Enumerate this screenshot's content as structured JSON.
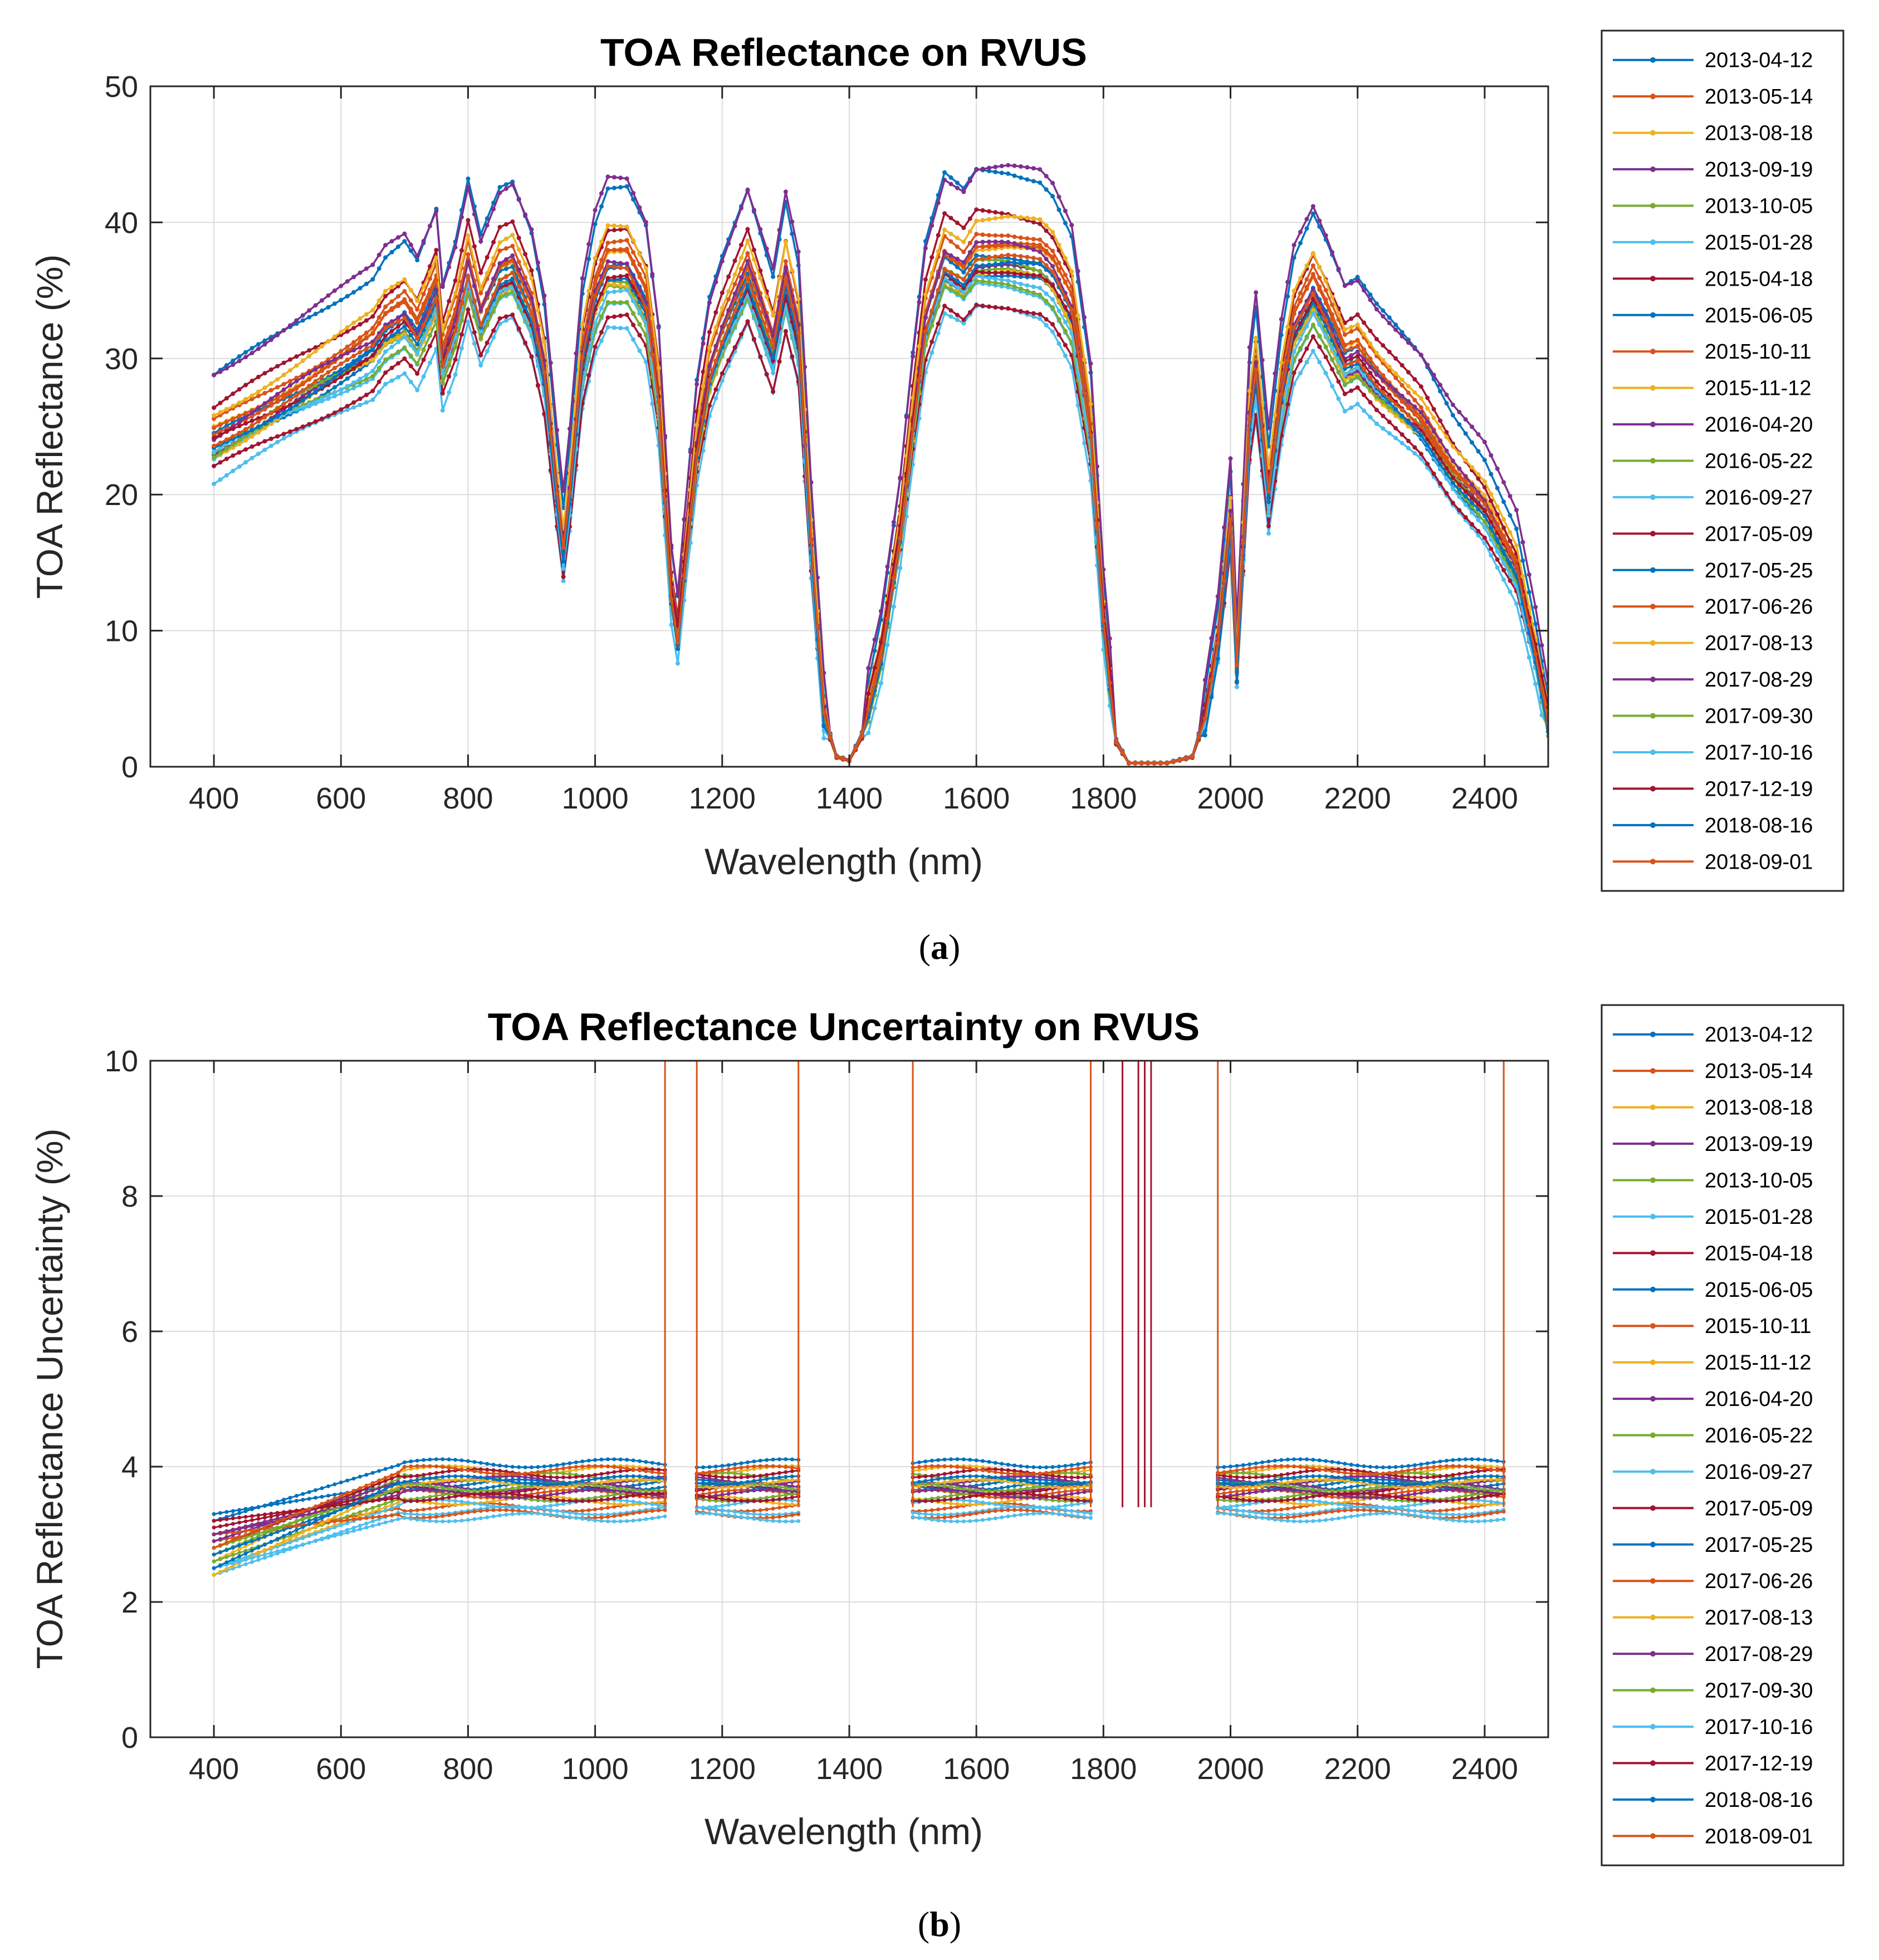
{
  "chart_data": [
    {
      "type": "line",
      "title": "TOA Reflectance on RVUS",
      "xlabel": "Wavelength (nm)",
      "ylabel": "TOA Reflectance (%)",
      "xlim": [
        300,
        2500
      ],
      "ylim": [
        0,
        50
      ],
      "xticks": [
        400,
        600,
        800,
        1000,
        1200,
        1400,
        1600,
        1800,
        2000,
        2200,
        2400
      ],
      "yticks": [
        0,
        10,
        20,
        30,
        40,
        50
      ],
      "grid": true,
      "legend_position": "outside-right",
      "caption": {
        "open": "(",
        "letter": "a",
        "close": ")"
      },
      "series": [
        {
          "name": "2013-04-12",
          "color": "#0072BD",
          "scale": 1.02,
          "offset": 1.5
        },
        {
          "name": "2013-05-14",
          "color": "#D95319",
          "scale": 0.95,
          "offset": 0.0
        },
        {
          "name": "2013-08-18",
          "color": "#EDB120",
          "scale": 0.9,
          "offset": 1.0
        },
        {
          "name": "2013-09-19",
          "color": "#7E2F8E",
          "scale": 1.0,
          "offset": 2.5
        },
        {
          "name": "2013-10-05",
          "color": "#77AC30",
          "scale": 0.86,
          "offset": 0.5
        },
        {
          "name": "2015-01-28",
          "color": "#4DBEEE",
          "scale": 0.83,
          "offset": -1.0
        },
        {
          "name": "2015-04-18",
          "color": "#A2142F",
          "scale": 0.97,
          "offset": 0.5
        },
        {
          "name": "2015-06-05",
          "color": "#0072BD",
          "scale": 0.91,
          "offset": 0.0
        },
        {
          "name": "2015-10-11",
          "color": "#D95319",
          "scale": 0.93,
          "offset": 0.0
        },
        {
          "name": "2015-11-12",
          "color": "#EDB120",
          "scale": 0.96,
          "offset": 0.5
        },
        {
          "name": "2016-04-20",
          "color": "#7E2F8E",
          "scale": 0.88,
          "offset": 0.0
        },
        {
          "name": "2016-05-22",
          "color": "#77AC30",
          "scale": 0.9,
          "offset": -0.5
        },
        {
          "name": "2016-09-27",
          "color": "#4DBEEE",
          "scale": 0.85,
          "offset": 0.0
        },
        {
          "name": "2017-05-09",
          "color": "#A2142F",
          "scale": 0.82,
          "offset": 0.0
        },
        {
          "name": "2017-05-25",
          "color": "#0072BD",
          "scale": 0.89,
          "offset": -0.5
        },
        {
          "name": "2017-06-26",
          "color": "#D95319",
          "scale": 0.94,
          "offset": -0.5
        },
        {
          "name": "2017-08-13",
          "color": "#EDB120",
          "scale": 0.87,
          "offset": 0.0
        },
        {
          "name": "2017-08-29",
          "color": "#7E2F8E",
          "scale": 0.92,
          "offset": 0.0
        },
        {
          "name": "2017-09-30",
          "color": "#77AC30",
          "scale": 0.84,
          "offset": 0.5
        },
        {
          "name": "2017-10-16",
          "color": "#4DBEEE",
          "scale": 0.88,
          "offset": -0.5
        },
        {
          "name": "2017-12-19",
          "color": "#A2142F",
          "scale": 0.86,
          "offset": 1.0
        },
        {
          "name": "2018-08-16",
          "color": "#0072BD",
          "scale": 0.92,
          "offset": -1.0
        },
        {
          "name": "2018-09-01",
          "color": "#D95319",
          "scale": 0.9,
          "offset": 0.0
        }
      ],
      "base_curve": {
        "x": [
          400,
          450,
          500,
          550,
          600,
          650,
          670,
          700,
          720,
          750,
          760,
          780,
          800,
          820,
          850,
          870,
          900,
          920,
          940,
          950,
          960,
          980,
          1000,
          1020,
          1050,
          1080,
          1100,
          1120,
          1130,
          1140,
          1160,
          1180,
          1200,
          1240,
          1260,
          1280,
          1300,
          1320,
          1340,
          1360,
          1380,
          1400,
          1420,
          1450,
          1480,
          1500,
          1520,
          1550,
          1580,
          1600,
          1650,
          1700,
          1720,
          1750,
          1780,
          1800,
          1820,
          1840,
          1900,
          1940,
          1960,
          1980,
          2000,
          2010,
          2030,
          2040,
          2060,
          2080,
          2100,
          2130,
          2150,
          2180,
          2200,
          2230,
          2260,
          2300,
          2350,
          2400,
          2450,
          2480,
          2500
        ],
        "y": [
          26.5,
          28.0,
          29.5,
          31.0,
          32.5,
          34.0,
          35.5,
          36.5,
          35.0,
          38.5,
          33.0,
          36.0,
          40.5,
          36.5,
          40.0,
          40.5,
          37.0,
          32.0,
          22.0,
          17.5,
          22.0,
          33.0,
          38.0,
          40.5,
          40.5,
          37.5,
          30.0,
          14.0,
          10.5,
          16.0,
          26.0,
          32.0,
          35.0,
          40.0,
          37.0,
          34.0,
          39.5,
          35.0,
          18.0,
          4.0,
          0.8,
          0.5,
          2.5,
          9.0,
          19.0,
          28.0,
          36.0,
          41.0,
          40.0,
          41.5,
          41.5,
          41.0,
          40.0,
          37.0,
          27.0,
          12.0,
          2.0,
          0.3,
          0.3,
          0.8,
          4.0,
          10.0,
          20.0,
          8.0,
          28.0,
          32.0,
          22.0,
          30.0,
          35.5,
          38.5,
          36.5,
          33.0,
          33.5,
          31.5,
          30.0,
          28.0,
          24.0,
          21.0,
          16.0,
          9.0,
          3.5
        ]
      }
    },
    {
      "type": "line",
      "title": "TOA Reflectance Uncertainty on RVUS",
      "xlabel": "Wavelength (nm)",
      "ylabel": "TOA Reflectance Uncertainty (%)",
      "xlim": [
        300,
        2500
      ],
      "ylim": [
        0,
        10
      ],
      "xticks": [
        400,
        600,
        800,
        1000,
        1200,
        1400,
        1600,
        1800,
        2000,
        2200,
        2400
      ],
      "yticks": [
        0,
        2,
        4,
        6,
        8,
        10
      ],
      "grid": true,
      "legend_position": "outside-right",
      "caption": {
        "open": "(",
        "letter": "b",
        "close": ")"
      },
      "segments": [
        [
          400,
          1110
        ],
        [
          1160,
          1320
        ],
        [
          1500,
          1780
        ],
        [
          1980,
          2430
        ]
      ],
      "spikes": [
        {
          "x": 1110,
          "color": "#D95319"
        },
        {
          "x": 1160,
          "color": "#D95319"
        },
        {
          "x": 1320,
          "color": "#D95319"
        },
        {
          "x": 1500,
          "color": "#D95319"
        },
        {
          "x": 1780,
          "color": "#D95319"
        },
        {
          "x": 1830,
          "color": "#A2142F"
        },
        {
          "x": 1855,
          "color": "#A2142F"
        },
        {
          "x": 1865,
          "color": "#A2142F"
        },
        {
          "x": 1875,
          "color": "#A2142F"
        },
        {
          "x": 1980,
          "color": "#D95319"
        },
        {
          "x": 2430,
          "color": "#D95319"
        }
      ],
      "series": [
        {
          "name": "2013-04-12",
          "color": "#0072BD",
          "level": 3.75,
          "start": 3.3
        },
        {
          "name": "2013-05-14",
          "color": "#D95319",
          "level": 3.4,
          "start": 2.9
        },
        {
          "name": "2013-08-18",
          "color": "#EDB120",
          "level": 3.95,
          "start": 2.6
        },
        {
          "name": "2013-09-19",
          "color": "#7E2F8E",
          "level": 3.7,
          "start": 3.0
        },
        {
          "name": "2013-10-05",
          "color": "#77AC30",
          "level": 3.85,
          "start": 2.7
        },
        {
          "name": "2015-01-28",
          "color": "#4DBEEE",
          "level": 3.35,
          "start": 2.4
        },
        {
          "name": "2015-04-18",
          "color": "#A2142F",
          "level": 3.9,
          "start": 2.8
        },
        {
          "name": "2015-06-05",
          "color": "#0072BD",
          "level": 4.05,
          "start": 3.2
        },
        {
          "name": "2015-10-11",
          "color": "#D95319",
          "level": 3.6,
          "start": 3.0
        },
        {
          "name": "2015-11-12",
          "color": "#EDB120",
          "level": 3.5,
          "start": 2.5
        },
        {
          "name": "2016-04-20",
          "color": "#7E2F8E",
          "level": 3.8,
          "start": 2.9
        },
        {
          "name": "2016-05-22",
          "color": "#77AC30",
          "level": 3.55,
          "start": 2.6
        },
        {
          "name": "2016-09-27",
          "color": "#4DBEEE",
          "level": 3.45,
          "start": 2.5
        },
        {
          "name": "2017-05-09",
          "color": "#A2142F",
          "level": 3.65,
          "start": 3.1
        },
        {
          "name": "2017-05-25",
          "color": "#0072BD",
          "level": 3.7,
          "start": 2.7
        },
        {
          "name": "2017-06-26",
          "color": "#D95319",
          "level": 3.3,
          "start": 3.0
        },
        {
          "name": "2017-08-13",
          "color": "#EDB120",
          "level": 3.75,
          "start": 2.4
        },
        {
          "name": "2017-08-29",
          "color": "#7E2F8E",
          "level": 3.6,
          "start": 3.0
        },
        {
          "name": "2017-09-30",
          "color": "#77AC30",
          "level": 3.7,
          "start": 2.8
        },
        {
          "name": "2017-10-16",
          "color": "#4DBEEE",
          "level": 3.25,
          "start": 2.5
        },
        {
          "name": "2017-12-19",
          "color": "#A2142F",
          "level": 3.55,
          "start": 3.2
        },
        {
          "name": "2018-08-16",
          "color": "#0072BD",
          "level": 3.8,
          "start": 2.5
        },
        {
          "name": "2018-09-01",
          "color": "#D95319",
          "level": 3.95,
          "start": 2.8
        }
      ]
    }
  ]
}
